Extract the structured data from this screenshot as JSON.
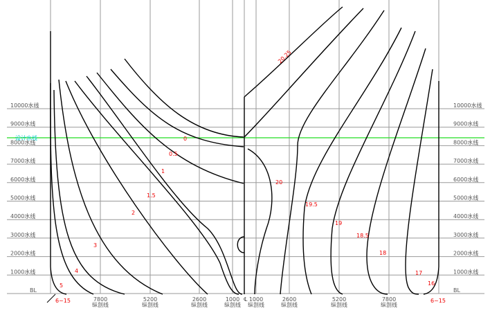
{
  "waterlines": {
    "labels": [
      "10000水线",
      "9000水线",
      "8000水线",
      "7000水线",
      "6000水线",
      "5000水线",
      "4000水线",
      "3000水线",
      "2000水线",
      "1000水线"
    ],
    "baseline": "BL",
    "design": "设计水线"
  },
  "buttock_lines": {
    "left": [
      "7800",
      "5200",
      "2600",
      "1000"
    ],
    "right": [
      "1000",
      "2600",
      "5200",
      "7800"
    ],
    "caption": "纵剖线"
  },
  "centerline": "℄",
  "stations": {
    "left": [
      "0",
      "0.5",
      "1",
      "1.5",
      "2",
      "3",
      "4",
      "5",
      "6~15"
    ],
    "right": [
      "20.25",
      "20",
      "19.5",
      "19",
      "18.5",
      "18",
      "17",
      "16",
      "6~15"
    ]
  }
}
